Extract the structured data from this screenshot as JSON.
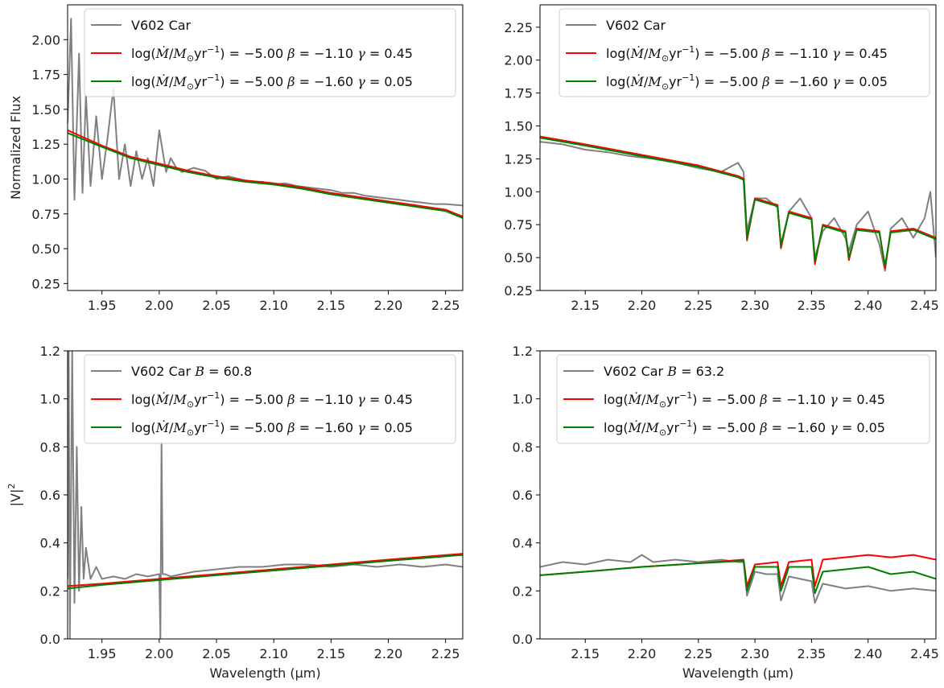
{
  "chart_data": [
    {
      "type": "line",
      "ylabel": "Normalized Flux",
      "xlabel": "",
      "xlim": [
        1.92,
        2.265
      ],
      "ylim": [
        0.2,
        2.25
      ],
      "xticks": [
        1.95,
        2.0,
        2.05,
        2.1,
        2.15,
        2.2,
        2.25
      ],
      "xtick_labels": [
        "1.95",
        "2.00",
        "2.05",
        "2.10",
        "2.15",
        "2.20",
        "2.25"
      ],
      "yticks": [
        0.25,
        0.5,
        0.75,
        1.0,
        1.25,
        1.5,
        1.75,
        2.0
      ],
      "ytick_labels": [
        "0.25",
        "0.50",
        "0.75",
        "1.00",
        "1.25",
        "1.50",
        "1.75",
        "2.00"
      ],
      "legend_position": "top-right",
      "legend": [
        {
          "key": "obs",
          "text": "V602 Car"
        },
        {
          "key": "m1",
          "text": "log(Ṁ/M⊙yr⁻¹) = −5.00 β = −1.10 γ = 0.45"
        },
        {
          "key": "m2",
          "text": "log(Ṁ/M⊙yr⁻¹) = −5.00 β = −1.60 γ = 0.05"
        }
      ],
      "series": [
        {
          "name": "V602 Car",
          "key": "obs",
          "x": [
            1.92,
            1.923,
            1.926,
            1.93,
            1.933,
            1.936,
            1.94,
            1.945,
            1.95,
            1.955,
            1.96,
            1.965,
            1.97,
            1.975,
            1.98,
            1.985,
            1.99,
            1.995,
            2.0,
            2.003,
            2.006,
            2.01,
            2.015,
            2.02,
            2.03,
            2.04,
            2.05,
            2.06,
            2.07,
            2.08,
            2.09,
            2.1,
            2.11,
            2.12,
            2.13,
            2.14,
            2.15,
            2.16,
            2.17,
            2.18,
            2.19,
            2.2,
            2.21,
            2.22,
            2.23,
            2.24,
            2.25,
            2.265
          ],
          "y": [
            1.4,
            2.15,
            0.85,
            1.9,
            0.9,
            1.6,
            0.95,
            1.45,
            1.0,
            1.3,
            1.65,
            1.0,
            1.25,
            0.95,
            1.2,
            1.0,
            1.15,
            0.95,
            1.35,
            1.2,
            1.05,
            1.15,
            1.08,
            1.05,
            1.08,
            1.06,
            1.0,
            1.02,
            1.0,
            0.98,
            0.98,
            0.96,
            0.97,
            0.95,
            0.94,
            0.93,
            0.92,
            0.9,
            0.9,
            0.88,
            0.87,
            0.86,
            0.85,
            0.84,
            0.83,
            0.82,
            0.82,
            0.81
          ]
        },
        {
          "name": "log(Ṁ/M⊙yr⁻¹) = −5.00 β = −1.10 γ = 0.45",
          "key": "m1",
          "x": [
            1.92,
            1.95,
            1.975,
            2.0,
            2.025,
            2.05,
            2.075,
            2.1,
            2.125,
            2.15,
            2.175,
            2.2,
            2.225,
            2.25,
            2.265
          ],
          "y": [
            1.35,
            1.24,
            1.16,
            1.11,
            1.06,
            1.02,
            0.99,
            0.97,
            0.94,
            0.9,
            0.87,
            0.84,
            0.81,
            0.78,
            0.73
          ]
        },
        {
          "name": "log(Ṁ/M⊙yr⁻¹) = −5.00 β = −1.60 γ = 0.05",
          "key": "m2",
          "x": [
            1.92,
            1.95,
            1.975,
            2.0,
            2.025,
            2.05,
            2.075,
            2.1,
            2.125,
            2.15,
            2.175,
            2.2,
            2.225,
            2.25,
            2.265
          ],
          "y": [
            1.33,
            1.23,
            1.15,
            1.1,
            1.05,
            1.01,
            0.98,
            0.96,
            0.93,
            0.89,
            0.86,
            0.83,
            0.8,
            0.77,
            0.72
          ]
        }
      ]
    },
    {
      "type": "line",
      "ylabel": "",
      "xlabel": "",
      "xlim": [
        2.11,
        2.46
      ],
      "ylim": [
        0.25,
        2.42
      ],
      "xticks": [
        2.15,
        2.2,
        2.25,
        2.3,
        2.35,
        2.4,
        2.45
      ],
      "xtick_labels": [
        "2.15",
        "2.20",
        "2.25",
        "2.30",
        "2.35",
        "2.40",
        "2.45"
      ],
      "yticks": [
        0.25,
        0.5,
        0.75,
        1.0,
        1.25,
        1.5,
        1.75,
        2.0,
        2.25
      ],
      "ytick_labels": [
        "0.25",
        "0.50",
        "0.75",
        "1.00",
        "1.25",
        "1.50",
        "1.75",
        "2.00",
        "2.25"
      ],
      "legend_position": "top-right",
      "legend": [
        {
          "key": "obs",
          "text": "V602 Car"
        },
        {
          "key": "m1",
          "text": "log(Ṁ/M⊙yr⁻¹) = −5.00 β = −1.10 γ = 0.45"
        },
        {
          "key": "m2",
          "text": "log(Ṁ/M⊙yr⁻¹) = −5.00 β = −1.60 γ = 0.05"
        }
      ],
      "series": [
        {
          "name": "V602 Car",
          "key": "obs",
          "x": [
            2.11,
            2.13,
            2.15,
            2.17,
            2.19,
            2.21,
            2.23,
            2.25,
            2.27,
            2.285,
            2.29,
            2.293,
            2.3,
            2.31,
            2.32,
            2.323,
            2.33,
            2.34,
            2.35,
            2.353,
            2.36,
            2.37,
            2.38,
            2.383,
            2.39,
            2.4,
            2.41,
            2.415,
            2.42,
            2.43,
            2.44,
            2.45,
            2.455,
            2.46
          ],
          "y": [
            1.38,
            1.36,
            1.32,
            1.3,
            1.27,
            1.25,
            1.22,
            1.18,
            1.15,
            1.22,
            1.15,
            0.7,
            0.95,
            0.95,
            0.88,
            0.6,
            0.85,
            0.95,
            0.8,
            0.5,
            0.7,
            0.8,
            0.65,
            0.55,
            0.75,
            0.85,
            0.6,
            0.4,
            0.72,
            0.8,
            0.65,
            0.8,
            1.0,
            0.5
          ]
        },
        {
          "name": "log(Ṁ/M⊙yr⁻¹) = −5.00 β = −1.10 γ = 0.45",
          "key": "m1",
          "x": [
            2.11,
            2.15,
            2.2,
            2.25,
            2.285,
            2.29,
            2.293,
            2.3,
            2.32,
            2.323,
            2.33,
            2.35,
            2.353,
            2.36,
            2.38,
            2.383,
            2.39,
            2.41,
            2.415,
            2.42,
            2.44,
            2.46
          ],
          "y": [
            1.42,
            1.36,
            1.28,
            1.2,
            1.12,
            1.1,
            0.63,
            0.95,
            0.9,
            0.57,
            0.85,
            0.8,
            0.45,
            0.75,
            0.7,
            0.48,
            0.72,
            0.7,
            0.42,
            0.7,
            0.72,
            0.65
          ]
        },
        {
          "name": "log(Ṁ/M⊙yr⁻¹) = −5.00 β = −1.60 γ = 0.05",
          "key": "m2",
          "x": [
            2.11,
            2.15,
            2.2,
            2.25,
            2.285,
            2.29,
            2.293,
            2.3,
            2.32,
            2.323,
            2.33,
            2.35,
            2.353,
            2.36,
            2.38,
            2.383,
            2.39,
            2.41,
            2.415,
            2.42,
            2.44,
            2.46
          ],
          "y": [
            1.41,
            1.35,
            1.27,
            1.19,
            1.11,
            1.09,
            0.65,
            0.94,
            0.89,
            0.59,
            0.84,
            0.79,
            0.47,
            0.74,
            0.69,
            0.5,
            0.71,
            0.69,
            0.44,
            0.69,
            0.71,
            0.64
          ]
        }
      ]
    },
    {
      "type": "line",
      "ylabel": "|V|²",
      "xlabel": "Wavelength (μm)",
      "xlim": [
        1.92,
        2.265
      ],
      "ylim": [
        0.0,
        1.2
      ],
      "xticks": [
        1.95,
        2.0,
        2.05,
        2.1,
        2.15,
        2.2,
        2.25
      ],
      "xtick_labels": [
        "1.95",
        "2.00",
        "2.05",
        "2.10",
        "2.15",
        "2.20",
        "2.25"
      ],
      "yticks": [
        0.0,
        0.2,
        0.4,
        0.6,
        0.8,
        1.0,
        1.2
      ],
      "ytick_labels": [
        "0.0",
        "0.2",
        "0.4",
        "0.6",
        "0.8",
        "1.0",
        "1.2"
      ],
      "legend_position": "top-right",
      "legend": [
        {
          "key": "obs",
          "text": "V602 Car B = 60.8"
        },
        {
          "key": "m1",
          "text": "log(Ṁ/M⊙yr⁻¹) = −5.00 β = −1.10 γ = 0.45"
        },
        {
          "key": "m2",
          "text": "log(Ṁ/M⊙yr⁻¹) = −5.00 β = −1.60 γ = 0.05"
        }
      ],
      "series": [
        {
          "name": "V602 Car B = 60.8",
          "key": "obs",
          "x": [
            1.92,
            1.921,
            1.922,
            1.924,
            1.926,
            1.928,
            1.93,
            1.932,
            1.934,
            1.936,
            1.94,
            1.945,
            1.95,
            1.96,
            1.97,
            1.98,
            1.99,
            2.0,
            2.001,
            2.002,
            2.003,
            2.005,
            2.01,
            2.03,
            2.05,
            2.07,
            2.09,
            2.11,
            2.13,
            2.15,
            2.17,
            2.19,
            2.21,
            2.23,
            2.25,
            2.265
          ],
          "y": [
            0.25,
            1.2,
            0.0,
            1.2,
            0.15,
            0.8,
            0.2,
            0.55,
            0.25,
            0.38,
            0.25,
            0.3,
            0.25,
            0.26,
            0.25,
            0.27,
            0.26,
            0.27,
            0.0,
            0.82,
            0.27,
            0.27,
            0.26,
            0.28,
            0.29,
            0.3,
            0.3,
            0.31,
            0.31,
            0.3,
            0.31,
            0.3,
            0.31,
            0.3,
            0.31,
            0.3
          ]
        },
        {
          "name": "log(Ṁ/M⊙yr⁻¹) = −5.00 β = −1.10 γ = 0.45",
          "key": "m1",
          "x": [
            1.92,
            1.95,
            2.0,
            2.05,
            2.1,
            2.15,
            2.2,
            2.265
          ],
          "y": [
            0.22,
            0.23,
            0.25,
            0.27,
            0.29,
            0.31,
            0.33,
            0.355
          ]
        },
        {
          "name": "log(Ṁ/M⊙yr⁻¹) = −5.00 β = −1.60 γ = 0.05",
          "key": "m2",
          "x": [
            1.92,
            1.95,
            2.0,
            2.05,
            2.1,
            2.15,
            2.2,
            2.265
          ],
          "y": [
            0.21,
            0.225,
            0.245,
            0.265,
            0.285,
            0.305,
            0.325,
            0.35
          ]
        }
      ]
    },
    {
      "type": "line",
      "ylabel": "",
      "xlabel": "Wavelength (μm)",
      "xlim": [
        2.11,
        2.46
      ],
      "ylim": [
        0.0,
        1.2
      ],
      "xticks": [
        2.15,
        2.2,
        2.25,
        2.3,
        2.35,
        2.4,
        2.45
      ],
      "xtick_labels": [
        "2.15",
        "2.20",
        "2.25",
        "2.30",
        "2.35",
        "2.40",
        "2.45"
      ],
      "yticks": [
        0.0,
        0.2,
        0.4,
        0.6,
        0.8,
        1.0,
        1.2
      ],
      "ytick_labels": [
        "0.0",
        "0.2",
        "0.4",
        "0.6",
        "0.8",
        "1.0",
        "1.2"
      ],
      "legend_position": "top-right",
      "legend": [
        {
          "key": "obs",
          "text": "V602 Car B = 63.2"
        },
        {
          "key": "m1",
          "text": "log(Ṁ/M⊙yr⁻¹) = −5.00 β = −1.10 γ = 0.45"
        },
        {
          "key": "m2",
          "text": "log(Ṁ/M⊙yr⁻¹) = −5.00 β = −1.60 γ = 0.05"
        }
      ],
      "series": [
        {
          "name": "V602 Car B = 63.2",
          "key": "obs",
          "x": [
            2.11,
            2.13,
            2.15,
            2.17,
            2.19,
            2.2,
            2.21,
            2.23,
            2.25,
            2.27,
            2.285,
            2.29,
            2.293,
            2.3,
            2.31,
            2.32,
            2.323,
            2.33,
            2.34,
            2.35,
            2.353,
            2.36,
            2.38,
            2.4,
            2.42,
            2.44,
            2.46
          ],
          "y": [
            0.3,
            0.32,
            0.31,
            0.33,
            0.32,
            0.35,
            0.32,
            0.33,
            0.32,
            0.33,
            0.32,
            0.32,
            0.18,
            0.28,
            0.27,
            0.27,
            0.16,
            0.26,
            0.25,
            0.24,
            0.15,
            0.23,
            0.21,
            0.22,
            0.2,
            0.21,
            0.2
          ]
        },
        {
          "name": "log(Ṁ/M⊙yr⁻¹) = −5.00 β = −1.10 γ = 0.45",
          "key": "m1",
          "x": [
            2.11,
            2.15,
            2.2,
            2.25,
            2.29,
            2.293,
            2.3,
            2.32,
            2.323,
            2.33,
            2.35,
            2.353,
            2.36,
            2.38,
            2.4,
            2.42,
            2.44,
            2.46
          ],
          "y": [
            0.265,
            0.28,
            0.3,
            0.315,
            0.33,
            0.22,
            0.31,
            0.32,
            0.22,
            0.32,
            0.33,
            0.22,
            0.33,
            0.34,
            0.35,
            0.34,
            0.35,
            0.33
          ]
        },
        {
          "name": "log(Ṁ/M⊙yr⁻¹) = −5.00 β = −1.60 γ = 0.05",
          "key": "m2",
          "x": [
            2.11,
            2.15,
            2.2,
            2.25,
            2.29,
            2.293,
            2.3,
            2.32,
            2.323,
            2.33,
            2.35,
            2.353,
            2.36,
            2.38,
            2.4,
            2.42,
            2.44,
            2.46
          ],
          "y": [
            0.265,
            0.28,
            0.3,
            0.315,
            0.325,
            0.2,
            0.3,
            0.3,
            0.2,
            0.3,
            0.3,
            0.19,
            0.28,
            0.29,
            0.3,
            0.27,
            0.28,
            0.25
          ]
        }
      ]
    }
  ],
  "colors": {
    "obs": "#808080",
    "m1": "#ff0000",
    "m2": "#008000"
  }
}
